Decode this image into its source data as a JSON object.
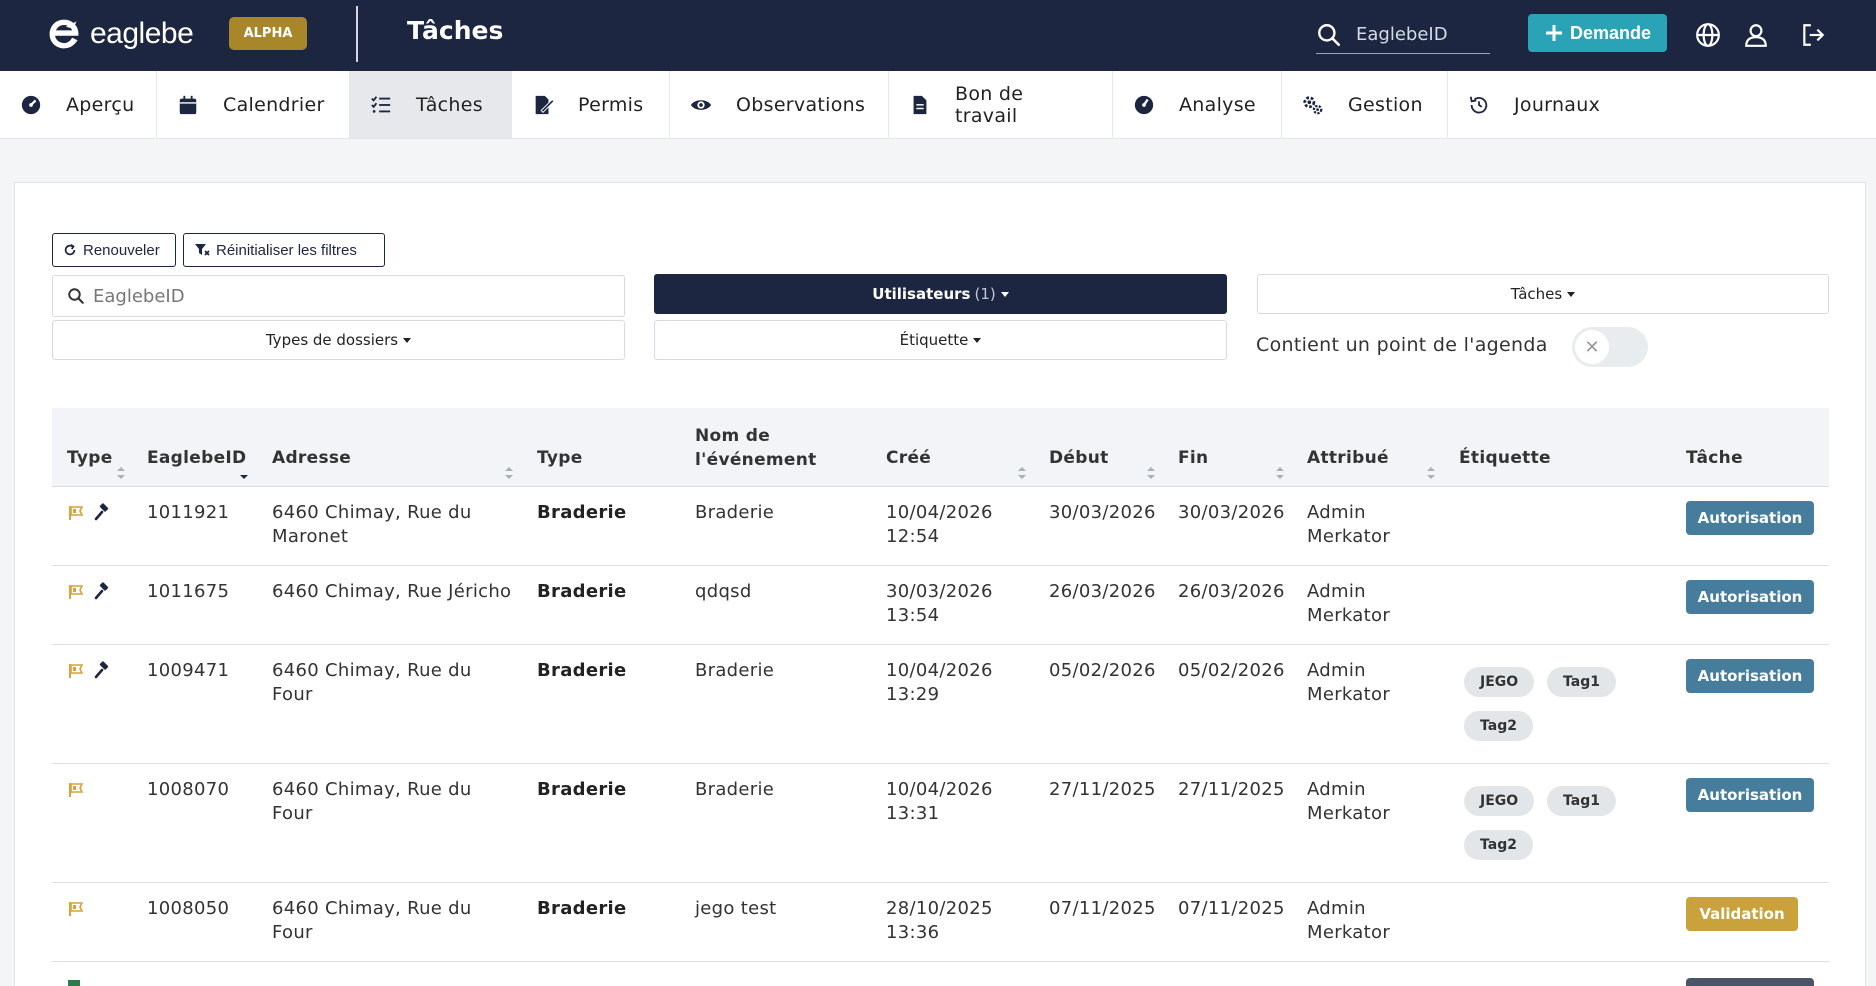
{
  "brand": {
    "name": "eaglebe",
    "badge": "ALPHA"
  },
  "header": {
    "title": "Tâches",
    "search_placeholder": "EaglebeID",
    "new_request_label": "Demande"
  },
  "nav": [
    {
      "label": "Aperçu",
      "icon": "dashboard-icon"
    },
    {
      "label": "Calendrier",
      "icon": "calendar-icon"
    },
    {
      "label": "Tâches",
      "icon": "tasks-icon"
    },
    {
      "label": "Permis",
      "icon": "permit-icon"
    },
    {
      "label": "Observations",
      "icon": "eye-icon"
    },
    {
      "label": "Bon de travail",
      "icon": "file-icon"
    },
    {
      "label": "Analyse",
      "icon": "gauge-icon"
    },
    {
      "label": "Gestion",
      "icon": "cogs-icon"
    },
    {
      "label": "Journaux",
      "icon": "history-icon"
    }
  ],
  "nav_active": "Tâches",
  "filters": {
    "refresh_label": "Renouveler",
    "reset_label": "Réinitialiser les filtres",
    "search_placeholder": "EaglebeID",
    "users_label": "Utilisateurs",
    "users_count": "(1)",
    "tasks_label": "Tâches",
    "folder_types_label": "Types de dossiers",
    "tag_label": "Étiquette",
    "agenda_label": "Contient un point de l'agenda",
    "agenda_toggle": false
  },
  "table": {
    "columns": [
      "Type",
      "EaglebeID",
      "Adresse",
      "Type",
      "Nom de l'événement",
      "Créé",
      "Début",
      "Fin",
      "Attribué",
      "Étiquette",
      "Tâche"
    ],
    "rows": [
      {
        "id": "1011921",
        "address": "6460 Chimay, Rue du Maronet",
        "type": "Braderie",
        "event": "Braderie",
        "created": "10/04/2026 12:54",
        "start": "30/03/2026",
        "end": "30/03/2026",
        "assigned": "Admin Merkator",
        "tags": [],
        "task": "Autorisation",
        "task_color": "#477d9c"
      },
      {
        "id": "1011675",
        "address": "6460 Chimay, Rue Jéricho",
        "type": "Braderie",
        "event": "qdqsd",
        "created": "30/03/2026 13:54",
        "start": "26/03/2026",
        "end": "26/03/2026",
        "assigned": "Admin Merkator",
        "tags": [],
        "task": "Autorisation",
        "task_color": "#477d9c"
      },
      {
        "id": "1009471",
        "address": "6460 Chimay, Rue du Four",
        "type": "Braderie",
        "event": "Braderie",
        "created": "10/04/2026 13:29",
        "start": "05/02/2026",
        "end": "05/02/2026",
        "assigned": "Admin Merkator",
        "tags": [
          "JEGO",
          "Tag1",
          "Tag2"
        ],
        "task": "Autorisation",
        "task_color": "#477d9c"
      },
      {
        "id": "1008070",
        "address": "6460 Chimay, Rue du Four",
        "type": "Braderie",
        "event": "Braderie",
        "created": "10/04/2026 13:31",
        "start": "27/11/2025",
        "end": "27/11/2025",
        "assigned": "Admin Merkator",
        "tags": [
          "JEGO",
          "Tag1",
          "Tag2"
        ],
        "task": "Autorisation",
        "task_color": "#477d9c"
      },
      {
        "id": "1008050",
        "address": "6460 Chimay, Rue du Four",
        "type": "Braderie",
        "event": "jego test",
        "created": "28/10/2025 13:36",
        "start": "07/11/2025",
        "end": "07/11/2025",
        "assigned": "Admin Merkator",
        "tags": [],
        "task": "Validation",
        "task_color": "#c9a23b"
      }
    ]
  },
  "colors": {
    "header_bg": "#1c2640",
    "accent": "#2aa3b7",
    "brand_gold": "#a8872a",
    "task_blue": "#477d9c",
    "task_gold": "#c9a23b"
  }
}
